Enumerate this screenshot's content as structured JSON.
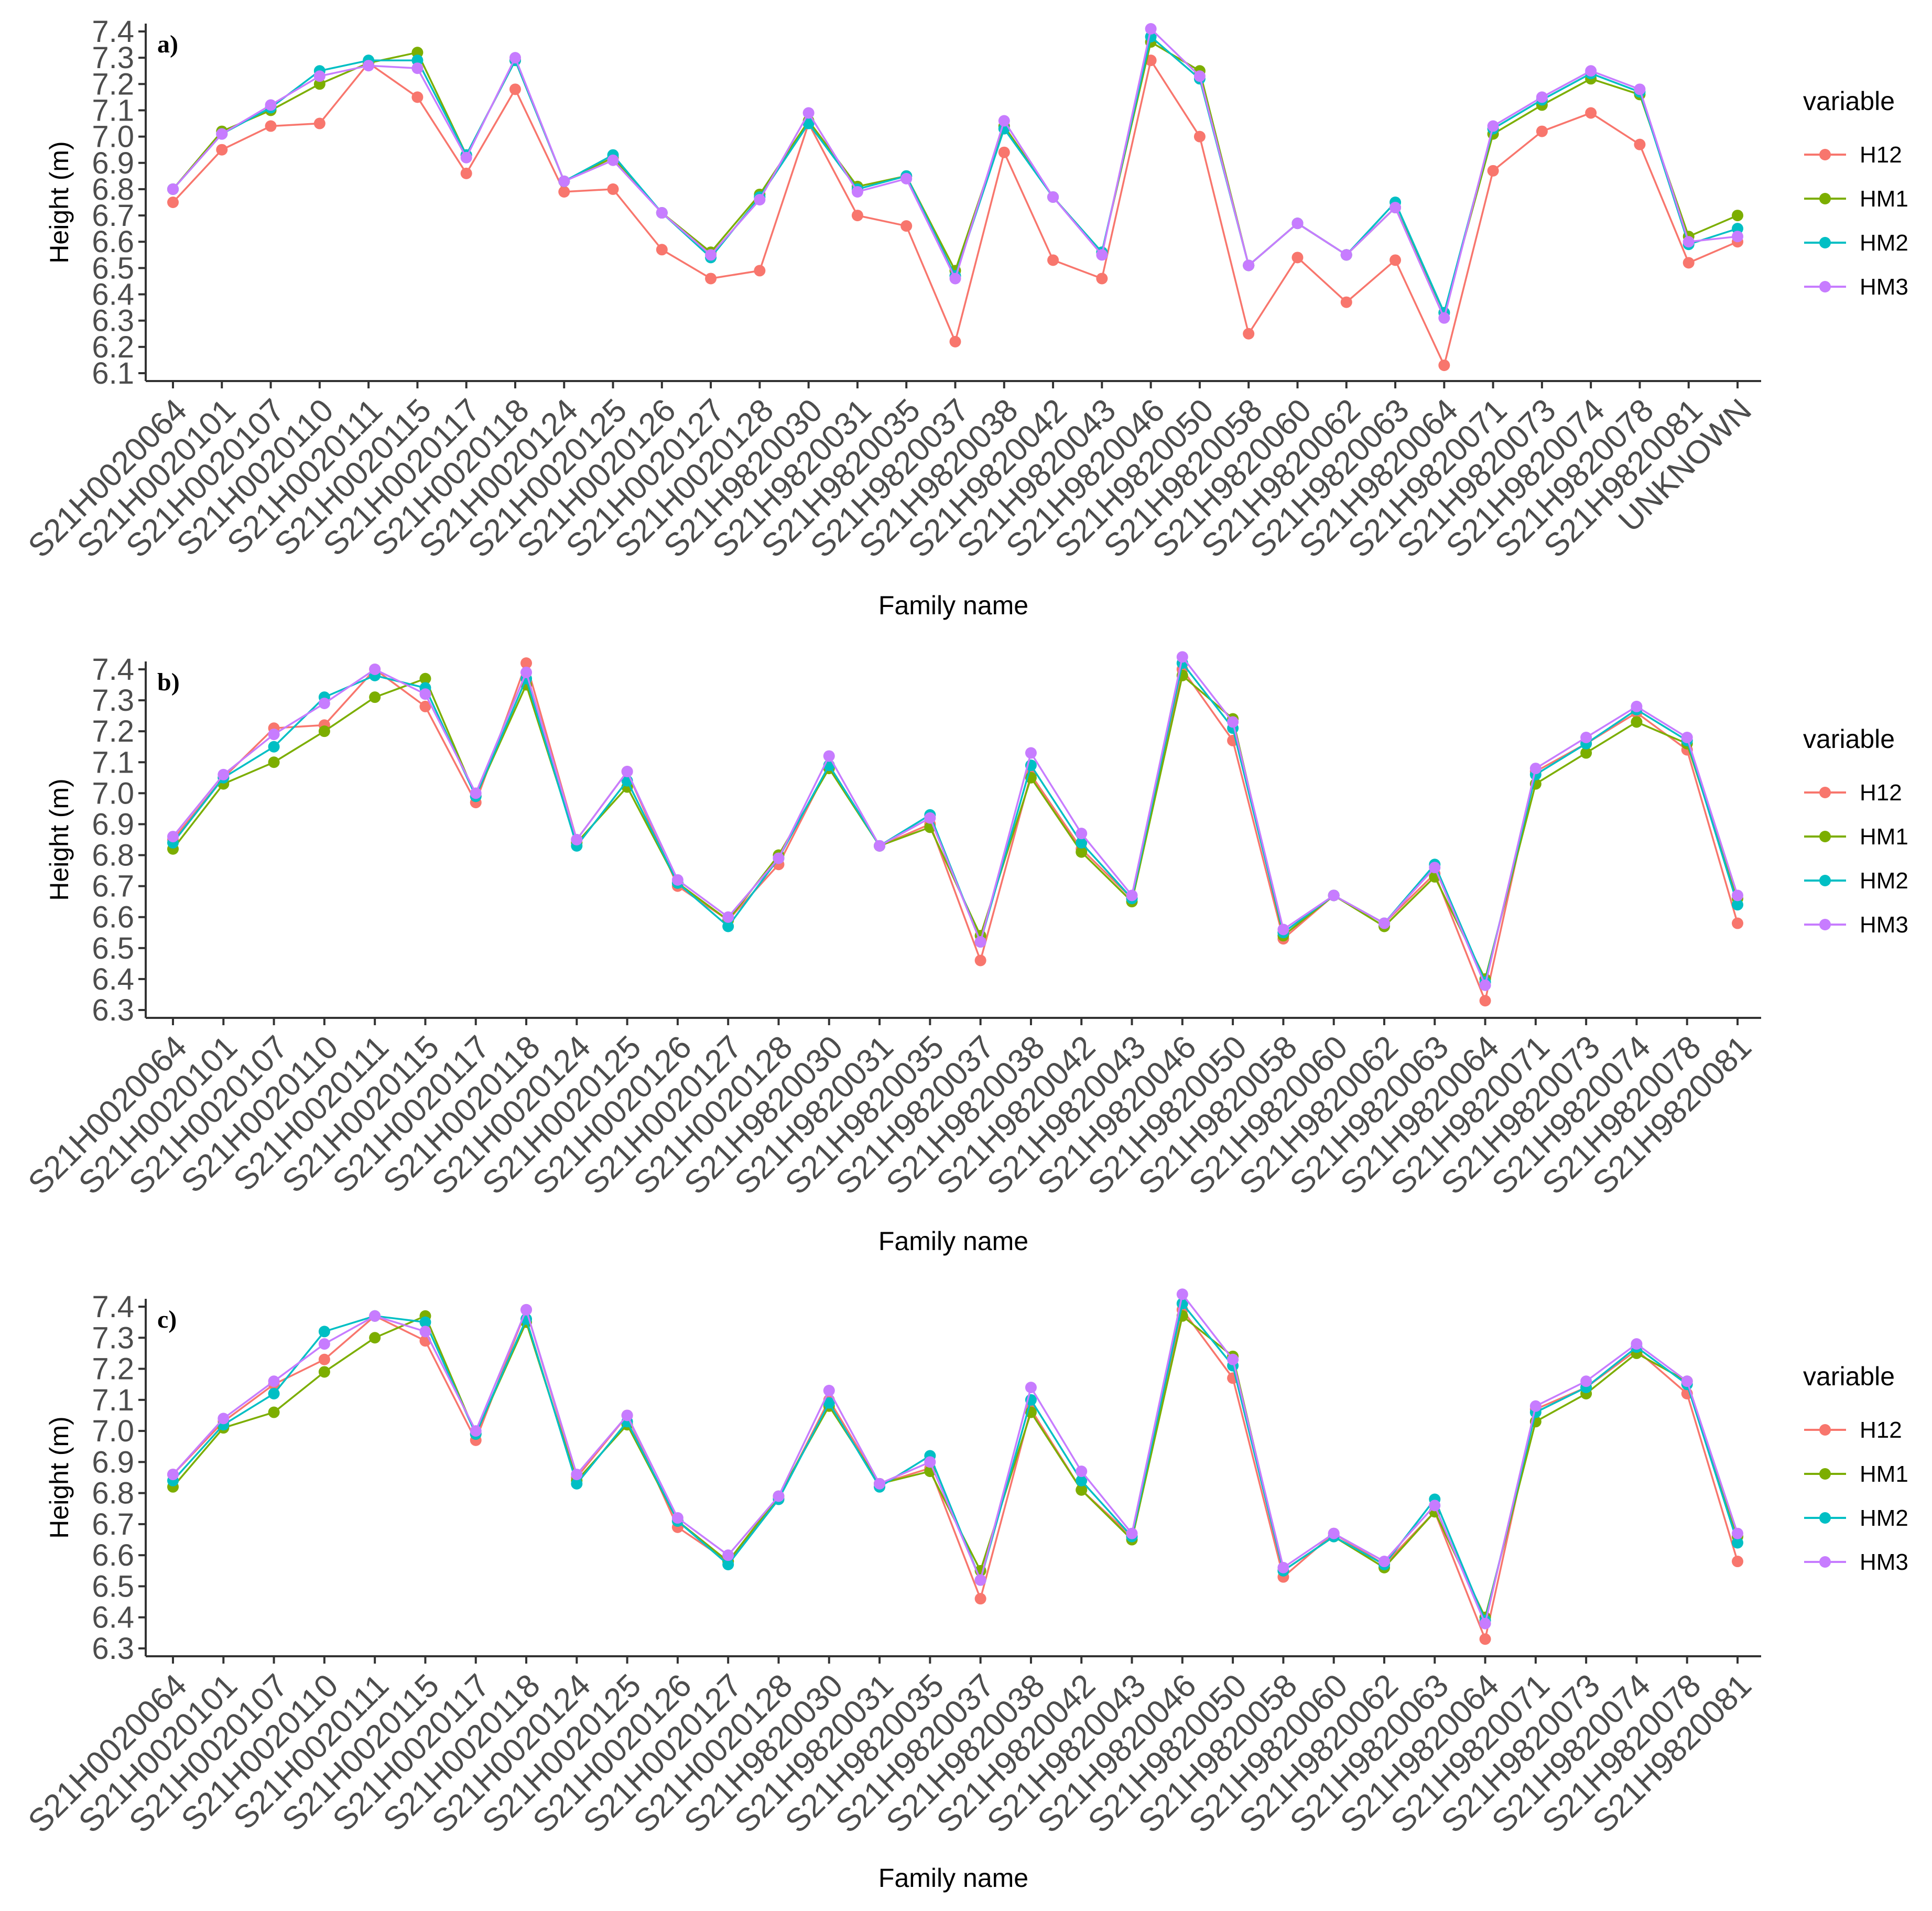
{
  "colors": {
    "H12": "#F8766D",
    "HM1": "#7CAE00",
    "HM2": "#00BFC4",
    "HM3": "#C77CFF",
    "axis": "#333333",
    "tick_text": "#4D4D4D"
  },
  "chart_data": [
    {
      "type": "line",
      "panel_label": "a)",
      "xlabel": "Family name",
      "ylabel": "Height (m)",
      "ylim": [
        6.1,
        7.4
      ],
      "yticks": [
        "6.1",
        "6.2",
        "6.3",
        "6.4",
        "6.5",
        "6.6",
        "6.7",
        "6.8",
        "6.9",
        "7.0",
        "7.1",
        "7.2",
        "7.3",
        "7.4"
      ],
      "legend_title": "variable",
      "legend_position": "right",
      "categories": [
        "S21H0020064",
        "S21H0020101",
        "S21H0020107",
        "S21H0020110",
        "S21H0020111",
        "S21H0020115",
        "S21H0020117",
        "S21H0020118",
        "S21H0020124",
        "S21H0020125",
        "S21H0020126",
        "S21H0020127",
        "S21H0020128",
        "S21H9820030",
        "S21H9820031",
        "S21H9820035",
        "S21H9820037",
        "S21H9820038",
        "S21H9820042",
        "S21H9820043",
        "S21H9820046",
        "S21H9820050",
        "S21H9820058",
        "S21H9820060",
        "S21H9820062",
        "S21H9820063",
        "S21H9820064",
        "S21H9820071",
        "S21H9820073",
        "S21H9820074",
        "S21H9820078",
        "S21H9820081",
        "UNKNOWN"
      ],
      "series": [
        {
          "name": "H12",
          "values": [
            6.75,
            6.95,
            7.04,
            7.05,
            7.28,
            7.15,
            6.86,
            7.18,
            6.79,
            6.8,
            6.57,
            6.46,
            6.49,
            7.05,
            6.7,
            6.66,
            6.22,
            6.94,
            6.53,
            6.46,
            7.29,
            7.0,
            6.25,
            6.54,
            6.37,
            6.53,
            6.13,
            6.87,
            7.02,
            7.09,
            6.97,
            6.52,
            6.6
          ]
        },
        {
          "name": "HM1",
          "values": [
            6.8,
            7.02,
            7.1,
            7.2,
            7.28,
            7.32,
            6.93,
            7.29,
            6.83,
            6.92,
            6.71,
            6.56,
            6.78,
            7.06,
            6.81,
            6.85,
            6.49,
            7.04,
            6.77,
            6.56,
            7.36,
            7.25,
            6.51,
            6.67,
            6.55,
            6.73,
            6.33,
            7.01,
            7.12,
            7.22,
            7.16,
            6.62,
            6.7
          ]
        },
        {
          "name": "HM2",
          "values": [
            6.8,
            7.01,
            7.11,
            7.25,
            7.29,
            7.29,
            6.93,
            7.29,
            6.83,
            6.93,
            6.71,
            6.54,
            6.77,
            7.05,
            6.8,
            6.85,
            6.47,
            7.03,
            6.77,
            6.56,
            7.38,
            7.22,
            6.51,
            6.67,
            6.55,
            6.75,
            6.33,
            7.03,
            7.14,
            7.24,
            7.17,
            6.59,
            6.65
          ]
        },
        {
          "name": "HM3",
          "values": [
            6.8,
            7.01,
            7.12,
            7.23,
            7.27,
            7.26,
            6.92,
            7.3,
            6.83,
            6.91,
            6.71,
            6.55,
            6.76,
            7.09,
            6.79,
            6.84,
            6.46,
            7.06,
            6.77,
            6.55,
            7.41,
            7.23,
            6.51,
            6.67,
            6.55,
            6.73,
            6.31,
            7.04,
            7.15,
            7.25,
            7.18,
            6.6,
            6.62
          ]
        }
      ]
    },
    {
      "type": "line",
      "panel_label": "b)",
      "xlabel": "Family name",
      "ylabel": "Height (m)",
      "ylim": [
        6.3,
        7.4
      ],
      "yticks": [
        "6.3",
        "6.4",
        "6.5",
        "6.6",
        "6.7",
        "6.8",
        "6.9",
        "7.0",
        "7.1",
        "7.2",
        "7.3",
        "7.4"
      ],
      "legend_title": "variable",
      "legend_position": "right",
      "categories": [
        "S21H0020064",
        "S21H0020101",
        "S21H0020107",
        "S21H0020110",
        "S21H0020111",
        "S21H0020115",
        "S21H0020117",
        "S21H0020118",
        "S21H0020124",
        "S21H0020125",
        "S21H0020126",
        "S21H0020127",
        "S21H0020128",
        "S21H9820030",
        "S21H9820031",
        "S21H9820035",
        "S21H9820037",
        "S21H9820038",
        "S21H9820042",
        "S21H9820043",
        "S21H9820046",
        "S21H9820050",
        "S21H9820058",
        "S21H9820060",
        "S21H9820062",
        "S21H9820063",
        "S21H9820064",
        "S21H9820071",
        "S21H9820073",
        "S21H9820074",
        "S21H9820078",
        "S21H9820081"
      ],
      "series": [
        {
          "name": "H12",
          "values": [
            6.85,
            7.05,
            7.21,
            7.22,
            7.4,
            7.28,
            6.97,
            7.42,
            6.85,
            7.07,
            6.7,
            6.59,
            6.77,
            7.09,
            6.83,
            6.9,
            6.46,
            7.06,
            6.82,
            6.66,
            7.4,
            7.17,
            6.53,
            6.67,
            6.58,
            6.74,
            6.33,
            7.07,
            7.16,
            7.26,
            7.14,
            6.58
          ]
        },
        {
          "name": "HM1",
          "values": [
            6.82,
            7.03,
            7.1,
            7.2,
            7.31,
            7.37,
            6.99,
            7.35,
            6.84,
            7.02,
            6.71,
            6.59,
            6.8,
            7.08,
            6.83,
            6.89,
            6.54,
            7.05,
            6.81,
            6.65,
            7.38,
            7.24,
            6.54,
            6.67,
            6.57,
            6.73,
            6.4,
            7.03,
            7.13,
            7.23,
            7.16,
            6.66
          ]
        },
        {
          "name": "HM2",
          "values": [
            6.84,
            7.05,
            7.15,
            7.31,
            7.38,
            7.34,
            6.99,
            7.37,
            6.83,
            7.04,
            6.71,
            6.57,
            6.79,
            7.09,
            6.83,
            6.93,
            6.52,
            7.09,
            6.84,
            6.66,
            7.42,
            7.21,
            6.55,
            6.67,
            6.58,
            6.77,
            6.39,
            7.06,
            7.16,
            7.27,
            7.17,
            6.64
          ]
        },
        {
          "name": "HM3",
          "values": [
            6.86,
            7.06,
            7.19,
            7.29,
            7.4,
            7.32,
            7.0,
            7.39,
            6.85,
            7.07,
            6.72,
            6.6,
            6.79,
            7.12,
            6.83,
            6.92,
            6.52,
            7.13,
            6.87,
            6.67,
            7.44,
            7.23,
            6.56,
            6.67,
            6.58,
            6.76,
            6.38,
            7.08,
            7.18,
            7.28,
            7.18,
            6.67
          ]
        }
      ]
    },
    {
      "type": "line",
      "panel_label": "c)",
      "xlabel": "Family name",
      "ylabel": "Height (m)",
      "ylim": [
        6.3,
        7.4
      ],
      "yticks": [
        "6.3",
        "6.4",
        "6.5",
        "6.6",
        "6.7",
        "6.8",
        "6.9",
        "7.0",
        "7.1",
        "7.2",
        "7.3",
        "7.4"
      ],
      "legend_title": "variable",
      "legend_position": "right",
      "categories": [
        "S21H0020064",
        "S21H0020101",
        "S21H0020107",
        "S21H0020110",
        "S21H0020111",
        "S21H0020115",
        "S21H0020117",
        "S21H0020118",
        "S21H0020124",
        "S21H0020125",
        "S21H0020126",
        "S21H0020127",
        "S21H0020128",
        "S21H9820030",
        "S21H9820031",
        "S21H9820035",
        "S21H9820037",
        "S21H9820038",
        "S21H9820042",
        "S21H9820043",
        "S21H9820046",
        "S21H9820050",
        "S21H9820058",
        "S21H9820060",
        "S21H9820062",
        "S21H9820063",
        "S21H9820064",
        "S21H9820071",
        "S21H9820073",
        "S21H9820074",
        "S21H9820078",
        "S21H9820081"
      ],
      "series": [
        {
          "name": "H12",
          "values": [
            6.86,
            7.03,
            7.15,
            7.23,
            7.37,
            7.29,
            6.97,
            7.39,
            6.85,
            7.05,
            6.69,
            6.58,
            6.78,
            7.1,
            6.83,
            6.88,
            6.46,
            7.07,
            6.81,
            6.66,
            7.39,
            7.17,
            6.53,
            6.67,
            6.57,
            6.74,
            6.33,
            7.07,
            7.14,
            7.26,
            7.12,
            6.58
          ]
        },
        {
          "name": "HM1",
          "values": [
            6.82,
            7.01,
            7.06,
            7.19,
            7.3,
            7.37,
            6.99,
            7.35,
            6.84,
            7.02,
            6.71,
            6.58,
            6.79,
            7.08,
            6.83,
            6.87,
            6.55,
            7.06,
            6.81,
            6.65,
            7.37,
            7.24,
            6.55,
            6.66,
            6.56,
            6.74,
            6.4,
            7.03,
            7.12,
            7.25,
            7.16,
            6.66
          ]
        },
        {
          "name": "HM2",
          "values": [
            6.84,
            7.02,
            7.12,
            7.32,
            7.37,
            7.35,
            6.99,
            7.36,
            6.83,
            7.03,
            6.71,
            6.57,
            6.78,
            7.09,
            6.82,
            6.92,
            6.52,
            7.1,
            6.84,
            6.66,
            7.41,
            7.21,
            6.55,
            6.66,
            6.57,
            6.78,
            6.39,
            7.06,
            7.14,
            7.27,
            7.15,
            6.64
          ]
        },
        {
          "name": "HM3",
          "values": [
            6.86,
            7.04,
            7.16,
            7.28,
            7.37,
            7.32,
            7.0,
            7.39,
            6.86,
            7.05,
            6.72,
            6.6,
            6.79,
            7.13,
            6.83,
            6.9,
            6.52,
            7.14,
            6.87,
            6.67,
            7.44,
            7.23,
            6.56,
            6.67,
            6.58,
            6.76,
            6.38,
            7.08,
            7.16,
            7.28,
            7.16,
            6.67
          ]
        }
      ]
    }
  ]
}
